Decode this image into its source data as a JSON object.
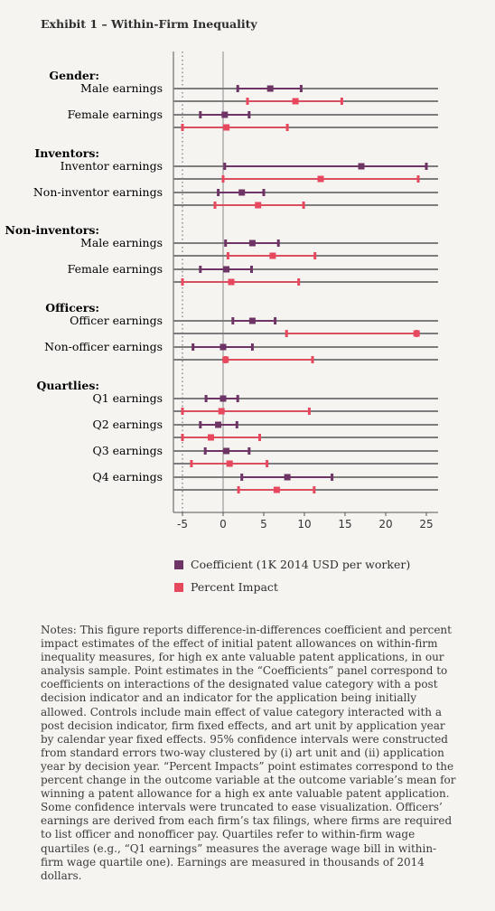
{
  "title": "Exhibit 1 – Within-Firm Inequality",
  "chart_data": {
    "type": "dot-whisker",
    "x_ticks": [
      "-5",
      "0",
      "5",
      "10",
      "15",
      "20",
      "25"
    ],
    "xlim": [
      -6,
      26
    ],
    "groups": [
      {
        "label": "Gender:",
        "rows": [
          {
            "label": "Male earnings",
            "coef": {
              "est": 5.8,
              "lo": 1.8,
              "hi": 9.6
            },
            "pct": {
              "est": 8.9,
              "lo": 3.0,
              "hi": 14.6
            }
          },
          {
            "label": "Female earnings",
            "coef": {
              "est": 0.2,
              "lo": -2.8,
              "hi": 3.2
            },
            "pct": {
              "est": 0.4,
              "lo": -5.0,
              "hi": 7.9
            }
          }
        ]
      },
      {
        "label": "Inventors:",
        "rows": [
          {
            "label": "Inventor earnings",
            "coef": {
              "est": 17.0,
              "lo": 0.2,
              "hi": 25.0
            },
            "pct": {
              "est": 12.0,
              "lo": 0.0,
              "hi": 24.0
            }
          },
          {
            "label": "Non-inventor earnings",
            "coef": {
              "est": 2.3,
              "lo": -0.6,
              "hi": 5.0
            },
            "pct": {
              "est": 4.3,
              "lo": -1.0,
              "hi": 9.9
            }
          }
        ]
      },
      {
        "label": "Non-inventors:",
        "rows": [
          {
            "label": "Male earnings",
            "coef": {
              "est": 3.6,
              "lo": 0.3,
              "hi": 6.8
            },
            "pct": {
              "est": 6.1,
              "lo": 0.6,
              "hi": 11.3
            }
          },
          {
            "label": "Female earnings",
            "coef": {
              "est": 0.4,
              "lo": -2.8,
              "hi": 3.5
            },
            "pct": {
              "est": 1.0,
              "lo": -5.0,
              "hi": 9.3
            }
          }
        ]
      },
      {
        "label": "Officers:",
        "rows": [
          {
            "label": "Officer earnings",
            "coef": {
              "est": 3.6,
              "lo": 1.2,
              "hi": 6.4
            },
            "pct": {
              "est": 23.8,
              "lo": 7.8,
              "hi": 23.8
            }
          },
          {
            "label": "Non-officer earnings",
            "coef": {
              "est": 0.0,
              "lo": -3.7,
              "hi": 3.6
            },
            "pct": {
              "est": 0.3,
              "lo": 0.3,
              "hi": 11.0
            }
          }
        ]
      },
      {
        "label": "Quartlies:",
        "rows": [
          {
            "label": "Q1 earnings",
            "coef": {
              "est": 0.0,
              "lo": -2.1,
              "hi": 1.8
            },
            "pct": {
              "est": -0.2,
              "lo": -5.0,
              "hi": 10.6
            }
          },
          {
            "label": "Q2 earnings",
            "coef": {
              "est": -0.6,
              "lo": -2.8,
              "hi": 1.7
            },
            "pct": {
              "est": -1.5,
              "lo": -5.0,
              "hi": 4.5
            }
          },
          {
            "label": "Q3 earnings",
            "coef": {
              "est": 0.4,
              "lo": -2.2,
              "hi": 3.2
            },
            "pct": {
              "est": 0.8,
              "lo": -3.9,
              "hi": 5.4
            }
          },
          {
            "label": "Q4 earnings",
            "coef": {
              "est": 7.9,
              "lo": 2.3,
              "hi": 13.4
            },
            "pct": {
              "est": 6.6,
              "lo": 1.9,
              "hi": 11.2
            }
          }
        ]
      }
    ],
    "legend": [
      {
        "key": "coef",
        "label": "Coefficient (1K 2014 USD per worker)",
        "color": "#6e3465"
      },
      {
        "key": "pct",
        "label": "Percent Impact",
        "color": "#e8485d"
      }
    ]
  },
  "notes": "Notes: This figure reports difference-in-differences coefficient and percent impact estimates of the effect of initial patent allowances on within-firm inequality measures, for high ex ante valuable patent applications, in our analysis sample. Point estimates in the “Coefficients” panel correspond to coefficients on interactions of the designated value category with a post decision indicator and an indicator for the application being initially allowed. Controls include main effect of value category interacted with a post decision indicator, firm fixed effects, and art unit by application year by calendar year fixed effects. 95% confidence intervals were constructed from standard errors two-way clustered by (i) art unit and (ii) application year by decision year. “Percent Impacts” point estimates correspond to the percent change in the outcome variable at the outcome variable’s mean for winning a patent allowance for a high ex ante valuable patent application. Some confidence intervals were truncated to ease visualization. Officers’ earnings are derived from each firm’s tax filings, where firms are required to list officer and nonofficer pay. Quartiles refer to within-firm wage quartiles (e.g., “Q1 earnings” measures the average wage bill in within-firm wage quartile one). Earnings are measured in thousands of 2014 dollars."
}
